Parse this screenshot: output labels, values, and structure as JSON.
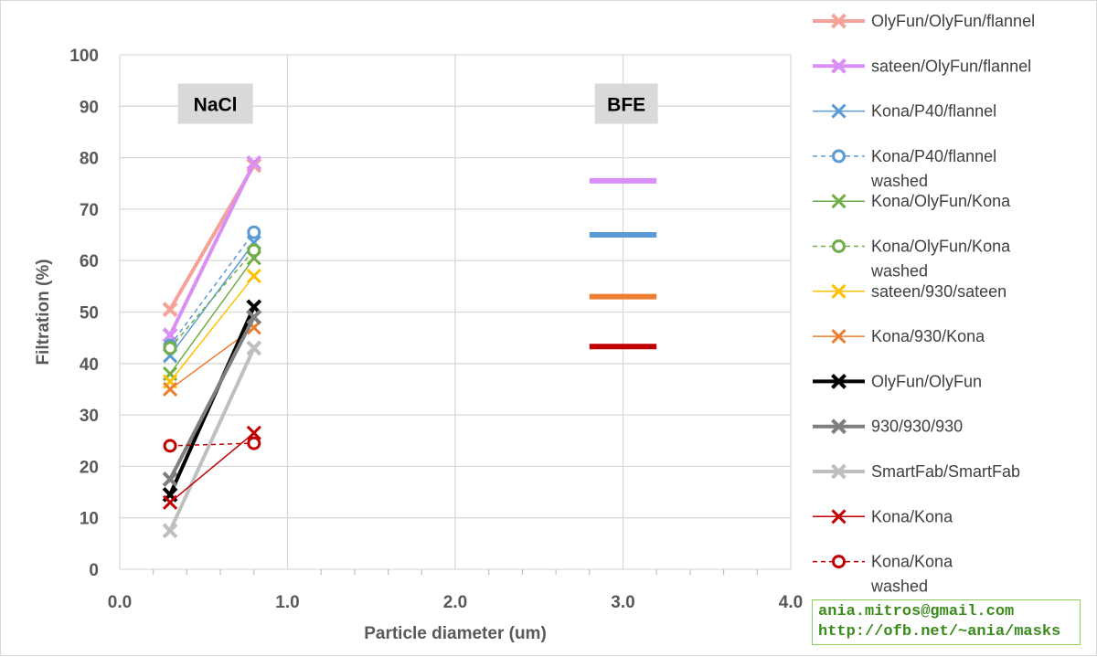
{
  "chart_data": {
    "type": "line",
    "title": "",
    "xlabel": "Particle diameter (um)",
    "ylabel": "Filtration (%)",
    "xlim": [
      0.0,
      4.0
    ],
    "ylim": [
      0,
      100
    ],
    "x_ticks": [
      "0.0",
      "1.0",
      "2.0",
      "3.0",
      "4.0"
    ],
    "y_ticks": [
      "0",
      "10",
      "20",
      "30",
      "40",
      "50",
      "60",
      "70",
      "80",
      "90",
      "100"
    ],
    "grid": true,
    "legend_position": "right",
    "annotations": [
      {
        "text": "NaCl",
        "x": 0.57,
        "y": 90.5
      },
      {
        "text": "BFE",
        "x": 3.02,
        "y": 90.5
      }
    ],
    "series": [
      {
        "name": "OlyFun/OlyFun/flannel",
        "color": "#f4a29a",
        "width": 4,
        "dash": false,
        "marker": "x",
        "x": [
          0.3,
          0.8
        ],
        "y": [
          50.5,
          78.5
        ]
      },
      {
        "name": "sateen/OlyFun/flannel",
        "color": "#d98ff3",
        "width": 4,
        "dash": false,
        "marker": "x",
        "x": [
          0.3,
          0.8
        ],
        "y": [
          45.5,
          79.0
        ]
      },
      {
        "name": "Kona/P40/flannel",
        "color": "#5b9bd5",
        "width": 1.5,
        "dash": false,
        "marker": "x",
        "x": [
          0.3,
          0.8
        ],
        "y": [
          41.5,
          63.5
        ]
      },
      {
        "name": "Kona/P40/flannel washed",
        "color": "#5b9bd5",
        "width": 1.5,
        "dash": true,
        "marker": "o",
        "x": [
          0.3,
          0.8
        ],
        "y": [
          43.5,
          65.5
        ]
      },
      {
        "name": "Kona/OlyFun/Kona",
        "color": "#70ad47",
        "width": 1.5,
        "dash": false,
        "marker": "x",
        "x": [
          0.3,
          0.8
        ],
        "y": [
          38.0,
          60.5
        ]
      },
      {
        "name": "Kona/OlyFun/Kona washed",
        "color": "#70ad47",
        "width": 1.5,
        "dash": true,
        "marker": "o",
        "x": [
          0.3,
          0.8
        ],
        "y": [
          43.0,
          62.0
        ]
      },
      {
        "name": "sateen/930/sateen",
        "color": "#ffc000",
        "width": 1.5,
        "dash": false,
        "marker": "x",
        "x": [
          0.3,
          0.8
        ],
        "y": [
          36.5,
          57.0
        ]
      },
      {
        "name": "Kona/930/Kona",
        "color": "#ed7d31",
        "width": 1.5,
        "dash": false,
        "marker": "x",
        "x": [
          0.3,
          0.8
        ],
        "y": [
          35.0,
          47.0
        ]
      },
      {
        "name": "OlyFun/OlyFun",
        "color": "#000000",
        "width": 4,
        "dash": false,
        "marker": "x",
        "x": [
          0.3,
          0.8
        ],
        "y": [
          14.5,
          51.0
        ]
      },
      {
        "name": "930/930/930",
        "color": "#7f7f7f",
        "width": 4,
        "dash": false,
        "marker": "x",
        "x": [
          0.3,
          0.8
        ],
        "y": [
          17.5,
          49.0
        ]
      },
      {
        "name": "SmartFab/SmartFab",
        "color": "#bfbfbf",
        "width": 4,
        "dash": false,
        "marker": "x",
        "x": [
          0.3,
          0.8
        ],
        "y": [
          7.5,
          43.0
        ]
      },
      {
        "name": "Kona/Kona",
        "color": "#c00000",
        "width": 1.5,
        "dash": false,
        "marker": "x",
        "x": [
          0.3,
          0.8
        ],
        "y": [
          13.0,
          26.5
        ]
      },
      {
        "name": "Kona/Kona washed",
        "color": "#c00000",
        "width": 1.5,
        "dash": true,
        "marker": "o",
        "x": [
          0.3,
          0.8
        ],
        "y": [
          24.0,
          24.5
        ]
      }
    ],
    "bfe_bars": [
      {
        "x_start": 2.8,
        "x_end": 3.2,
        "y": 75.5,
        "color": "#d98ff3"
      },
      {
        "x_start": 2.8,
        "x_end": 3.2,
        "y": 65.0,
        "color": "#5b9bd5"
      },
      {
        "x_start": 2.8,
        "x_end": 3.2,
        "y": 53.0,
        "color": "#ed7d31"
      },
      {
        "x_start": 2.8,
        "x_end": 3.2,
        "y": 43.3,
        "color": "#c00000"
      }
    ]
  },
  "credit": {
    "email": "ania.mitros@gmail.com",
    "url": "http://ofb.net/~ania/masks"
  }
}
